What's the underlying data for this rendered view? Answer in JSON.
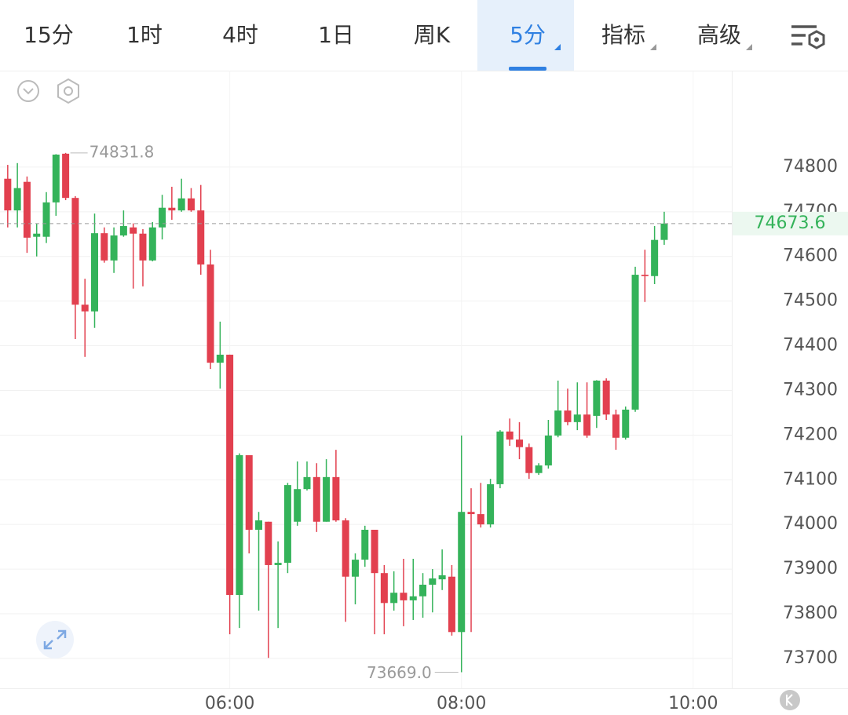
{
  "tabs": [
    {
      "label": "15分",
      "active": false,
      "dropdown": false
    },
    {
      "label": "1时",
      "active": false,
      "dropdown": false
    },
    {
      "label": "4时",
      "active": false,
      "dropdown": false
    },
    {
      "label": "1日",
      "active": false,
      "dropdown": false
    },
    {
      "label": "周K",
      "active": false,
      "dropdown": false
    },
    {
      "label": "5分",
      "active": true,
      "dropdown": true
    },
    {
      "label": "指标",
      "active": false,
      "dropdown": true
    },
    {
      "label": "高级",
      "active": false,
      "dropdown": true
    }
  ],
  "chart_data": {
    "type": "candlestick",
    "x": [
      245,
      250,
      255,
      260,
      265,
      270,
      275,
      280,
      285,
      290,
      295,
      300,
      305,
      310,
      315,
      320,
      325,
      330,
      335,
      340,
      345,
      350,
      355,
      360,
      365,
      370,
      375,
      380,
      385,
      390,
      395,
      400,
      405,
      410,
      415,
      420,
      425,
      430,
      435,
      440,
      445,
      450,
      455,
      460,
      465,
      470,
      475,
      480,
      485,
      490,
      495,
      500,
      505,
      510,
      515,
      520,
      525,
      530,
      535,
      540,
      545,
      550,
      555,
      560,
      565,
      570,
      575,
      580,
      585
    ],
    "open": [
      74774,
      74703,
      74767,
      74644,
      74644,
      74721,
      74830,
      74731,
      74492,
      74477,
      74652,
      74591,
      74647,
      74665,
      74651,
      74591,
      74665,
      74709,
      74703,
      74730,
      74703,
      74582,
      74362,
      74380,
      73842,
      74155,
      73988,
      74006,
      73909,
      73914,
      74006,
      74079,
      74106,
      74006,
      74106,
      74009,
      73883,
      73921,
      73988,
      73891,
      73824,
      73847,
      73830,
      73839,
      73865,
      73877,
      73883,
      73759,
      74028,
      74023,
      74000,
      74090,
      74208,
      74190,
      74173,
      74115,
      74132,
      74199,
      74255,
      74229,
      74246,
      74243,
      74322,
      74246,
      74194,
      74257,
      74559,
      74556,
      74637
    ],
    "high": [
      74805,
      74809,
      74779,
      74674,
      74744,
      74829,
      74831.8,
      74735,
      74550,
      74696,
      74665,
      74665,
      74703,
      74674,
      74661,
      74677,
      74738,
      74756,
      74774,
      74753,
      74760,
      74615,
      74454,
      74380,
      74159,
      74155,
      74028,
      74006,
      73962,
      74093,
      74141,
      74141,
      74137,
      74146,
      74167,
      74014,
      73935,
      73997,
      73988,
      73909,
      73895,
      73923,
      73923,
      73891,
      73900,
      73944,
      73909,
      74199,
      74081,
      74093,
      74102,
      74211,
      74237,
      74229,
      74181,
      74137,
      74234,
      74322,
      74304,
      74318,
      74318,
      74323,
      74327,
      74257,
      74264,
      74577,
      74615,
      74668,
      74700
    ],
    "low": [
      74665,
      74665,
      74608,
      74600,
      74630,
      74691,
      74726,
      74415,
      74375,
      74440,
      74586,
      74563,
      74644,
      74528,
      74533,
      74589,
      74638,
      74682,
      74700,
      74700,
      74559,
      74348,
      74304,
      73754,
      73768,
      73935,
      73807,
      73701,
      73768,
      73891,
      73997,
      74076,
      73983,
      74006,
      74006,
      73782,
      73821,
      73905,
      73754,
      73754,
      73807,
      73772,
      73786,
      73791,
      73803,
      73853,
      73751,
      73669.0,
      73759,
      73993,
      73993,
      74081,
      74176,
      74146,
      74102,
      74111,
      74125,
      74195,
      74222,
      74211,
      74194,
      74216,
      74234,
      74167,
      74190,
      74252,
      74498,
      74538,
      74626
    ],
    "close": [
      74703,
      74753,
      74642,
      74651,
      74721,
      74828,
      74731,
      74492,
      74477,
      74652,
      74591,
      74647,
      74668,
      74651,
      74591,
      74665,
      74709,
      74703,
      74730,
      74703,
      74582,
      74362,
      74380,
      73842,
      74155,
      73988,
      74009,
      73909,
      73914,
      74088,
      74079,
      74106,
      74006,
      74106,
      74009,
      73883,
      73921,
      73988,
      73891,
      73824,
      73847,
      73830,
      73839,
      73865,
      73879,
      73886,
      73759,
      74028,
      74023,
      74000,
      74090,
      74208,
      74190,
      74173,
      74115,
      74132,
      74199,
      74255,
      74229,
      74246,
      74199,
      74322,
      74246,
      74194,
      74257,
      74559,
      74556,
      74637,
      74673.6
    ],
    "up_color": "#34b35a",
    "down_color": "#e2404f",
    "xlim": [
      241,
      620
    ],
    "xticks": [
      {
        "value": 360,
        "label": "06:00"
      },
      {
        "value": 480,
        "label": "08:00"
      },
      {
        "value": 600,
        "label": "10:00"
      }
    ],
    "ylim": [
      73633,
      75016
    ],
    "yticks": [
      73700,
      73800,
      73900,
      74000,
      74100,
      74200,
      74300,
      74400,
      74500,
      74600,
      74700,
      74800
    ],
    "grid": true,
    "annotations": {
      "max": "74831.8",
      "min": "73669.0",
      "last": "74673.6"
    }
  }
}
